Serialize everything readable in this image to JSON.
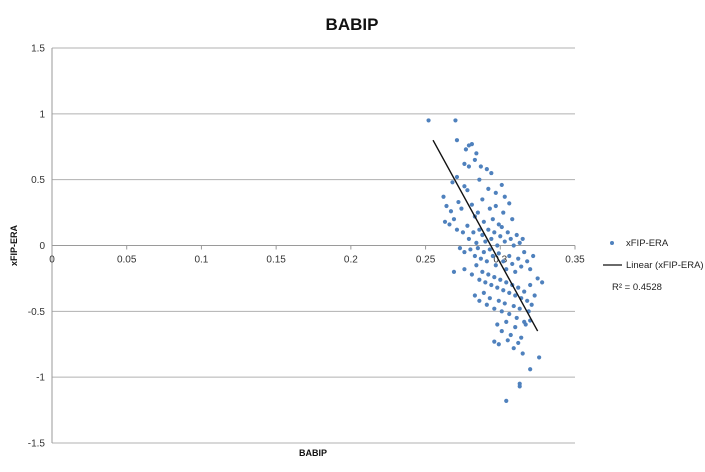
{
  "chart_data": {
    "type": "scatter",
    "title": "BABIP",
    "xlabel": "BABIP",
    "ylabel": "xFIP-ERA",
    "xlim": [
      0,
      0.35
    ],
    "ylim": [
      -1.5,
      1.5
    ],
    "xticks": [
      0,
      0.05,
      0.1,
      0.15,
      0.2,
      0.25,
      0.3,
      0.35
    ],
    "xtick_labels": [
      "0",
      "0.05",
      "0.1",
      "0.15",
      "0.2",
      "0.25",
      "0.3",
      "0.35"
    ],
    "yticks": [
      -1.5,
      -1,
      -0.5,
      0,
      0.5,
      1,
      1.5
    ],
    "ytick_labels": [
      "-1.5",
      "-1",
      "-0.5",
      "0",
      "0.5",
      "1",
      "1.5"
    ],
    "grid": "horizontal",
    "legend_position": "right",
    "series": [
      {
        "name": "xFIP-ERA",
        "kind": "points",
        "color": "#4f81bd",
        "points": [
          [
            0.252,
            0.95
          ],
          [
            0.27,
            0.95
          ],
          [
            0.271,
            0.8
          ],
          [
            0.279,
            0.76
          ],
          [
            0.281,
            0.77
          ],
          [
            0.277,
            0.73
          ],
          [
            0.284,
            0.7
          ],
          [
            0.283,
            0.65
          ],
          [
            0.276,
            0.62
          ],
          [
            0.279,
            0.6
          ],
          [
            0.287,
            0.6
          ],
          [
            0.291,
            0.58
          ],
          [
            0.294,
            0.55
          ],
          [
            0.271,
            0.52
          ],
          [
            0.268,
            0.48
          ],
          [
            0.276,
            0.45
          ],
          [
            0.278,
            0.42
          ],
          [
            0.286,
            0.5
          ],
          [
            0.292,
            0.43
          ],
          [
            0.297,
            0.4
          ],
          [
            0.301,
            0.46
          ],
          [
            0.303,
            0.37
          ],
          [
            0.262,
            0.37
          ],
          [
            0.264,
            0.3
          ],
          [
            0.267,
            0.26
          ],
          [
            0.272,
            0.33
          ],
          [
            0.274,
            0.28
          ],
          [
            0.281,
            0.31
          ],
          [
            0.283,
            0.22
          ],
          [
            0.285,
            0.25
          ],
          [
            0.288,
            0.35
          ],
          [
            0.289,
            0.18
          ],
          [
            0.293,
            0.28
          ],
          [
            0.295,
            0.2
          ],
          [
            0.297,
            0.3
          ],
          [
            0.299,
            0.16
          ],
          [
            0.302,
            0.25
          ],
          [
            0.306,
            0.32
          ],
          [
            0.308,
            0.2
          ],
          [
            0.263,
            0.18
          ],
          [
            0.266,
            0.16
          ],
          [
            0.269,
            0.2
          ],
          [
            0.271,
            0.12
          ],
          [
            0.275,
            0.1
          ],
          [
            0.278,
            0.15
          ],
          [
            0.279,
            0.05
          ],
          [
            0.282,
            0.1
          ],
          [
            0.284,
            0.02
          ],
          [
            0.286,
            0.12
          ],
          [
            0.288,
            0.08
          ],
          [
            0.29,
            0.03
          ],
          [
            0.292,
            0.12
          ],
          [
            0.294,
            0.05
          ],
          [
            0.296,
            0.1
          ],
          [
            0.298,
            0.0
          ],
          [
            0.3,
            0.07
          ],
          [
            0.301,
            0.14
          ],
          [
            0.303,
            0.03
          ],
          [
            0.305,
            0.1
          ],
          [
            0.307,
            0.05
          ],
          [
            0.309,
            0.0
          ],
          [
            0.311,
            0.08
          ],
          [
            0.313,
            0.02
          ],
          [
            0.315,
            0.05
          ],
          [
            0.273,
            -0.02
          ],
          [
            0.276,
            -0.05
          ],
          [
            0.28,
            -0.03
          ],
          [
            0.283,
            -0.08
          ],
          [
            0.285,
            -0.02
          ],
          [
            0.287,
            -0.1
          ],
          [
            0.289,
            -0.05
          ],
          [
            0.291,
            -0.12
          ],
          [
            0.293,
            -0.03
          ],
          [
            0.295,
            -0.08
          ],
          [
            0.297,
            -0.15
          ],
          [
            0.299,
            -0.06
          ],
          [
            0.302,
            -0.12
          ],
          [
            0.304,
            -0.18
          ],
          [
            0.306,
            -0.08
          ],
          [
            0.308,
            -0.14
          ],
          [
            0.31,
            -0.2
          ],
          [
            0.312,
            -0.1
          ],
          [
            0.314,
            -0.16
          ],
          [
            0.316,
            -0.05
          ],
          [
            0.318,
            -0.12
          ],
          [
            0.32,
            -0.18
          ],
          [
            0.322,
            -0.08
          ],
          [
            0.269,
            -0.2
          ],
          [
            0.276,
            -0.18
          ],
          [
            0.281,
            -0.22
          ],
          [
            0.284,
            -0.15
          ],
          [
            0.286,
            -0.26
          ],
          [
            0.288,
            -0.2
          ],
          [
            0.29,
            -0.28
          ],
          [
            0.292,
            -0.22
          ],
          [
            0.294,
            -0.3
          ],
          [
            0.296,
            -0.24
          ],
          [
            0.298,
            -0.32
          ],
          [
            0.3,
            -0.26
          ],
          [
            0.302,
            -0.34
          ],
          [
            0.304,
            -0.28
          ],
          [
            0.306,
            -0.36
          ],
          [
            0.308,
            -0.3
          ],
          [
            0.31,
            -0.38
          ],
          [
            0.312,
            -0.32
          ],
          [
            0.314,
            -0.4
          ],
          [
            0.316,
            -0.35
          ],
          [
            0.318,
            -0.42
          ],
          [
            0.32,
            -0.3
          ],
          [
            0.323,
            -0.38
          ],
          [
            0.325,
            -0.25
          ],
          [
            0.328,
            -0.28
          ],
          [
            0.283,
            -0.38
          ],
          [
            0.286,
            -0.42
          ],
          [
            0.289,
            -0.36
          ],
          [
            0.291,
            -0.45
          ],
          [
            0.293,
            -0.4
          ],
          [
            0.296,
            -0.48
          ],
          [
            0.299,
            -0.42
          ],
          [
            0.301,
            -0.5
          ],
          [
            0.303,
            -0.44
          ],
          [
            0.306,
            -0.52
          ],
          [
            0.309,
            -0.46
          ],
          [
            0.311,
            -0.55
          ],
          [
            0.313,
            -0.48
          ],
          [
            0.316,
            -0.58
          ],
          [
            0.319,
            -0.5
          ],
          [
            0.321,
            -0.45
          ],
          [
            0.298,
            -0.6
          ],
          [
            0.301,
            -0.65
          ],
          [
            0.304,
            -0.58
          ],
          [
            0.307,
            -0.68
          ],
          [
            0.31,
            -0.62
          ],
          [
            0.314,
            -0.7
          ],
          [
            0.317,
            -0.6
          ],
          [
            0.32,
            -0.57
          ],
          [
            0.296,
            -0.73
          ],
          [
            0.299,
            -0.75
          ],
          [
            0.305,
            -0.72
          ],
          [
            0.309,
            -0.78
          ],
          [
            0.312,
            -0.74
          ],
          [
            0.315,
            -0.82
          ],
          [
            0.326,
            -0.85
          ],
          [
            0.32,
            -0.94
          ],
          [
            0.313,
            -1.05
          ],
          [
            0.313,
            -1.07
          ],
          [
            0.304,
            -1.18
          ]
        ]
      },
      {
        "name": "Linear (xFIP-ERA)",
        "kind": "trendline",
        "color": "#111111",
        "line": [
          [
            0.255,
            0.8
          ],
          [
            0.325,
            -0.65
          ]
        ]
      }
    ],
    "annotations": [
      {
        "text": "R² = 0.4528",
        "placement": "right, below legend"
      }
    ]
  }
}
